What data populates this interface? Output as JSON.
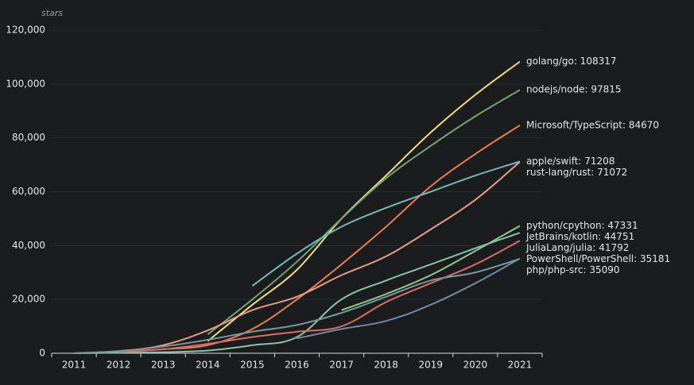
{
  "chart_data": {
    "type": "line",
    "y_axis_name": "stars",
    "categories": [
      "2011",
      "2012",
      "2013",
      "2014",
      "2015",
      "2016",
      "2017",
      "2018",
      "2019",
      "2020",
      "2021"
    ],
    "ylim": [
      0,
      120000
    ],
    "yticks": [
      0,
      {
        "value": 20000,
        "label": "20,000"
      },
      {
        "value": 40000,
        "label": "40,000"
      },
      {
        "value": 60000,
        "label": "60,000"
      },
      {
        "value": 80000,
        "label": "80,000"
      },
      {
        "value": 100000,
        "label": "100,000"
      },
      {
        "value": 120000,
        "label": "120,000"
      }
    ],
    "grid": true,
    "series": [
      {
        "label": "golang/go: 108317",
        "color": "#eedd78",
        "values": [
          null,
          null,
          null,
          4500,
          18000,
          31000,
          50000,
          66000,
          82000,
          96000,
          108317
        ]
      },
      {
        "label": "nodejs/node: 97815",
        "color": "#73a373",
        "values": [
          null,
          null,
          null,
          7000,
          20000,
          34000,
          50000,
          65000,
          77000,
          88000,
          97815
        ]
      },
      {
        "label": "Microsoft/TypeScript: 84670",
        "color": "#ea7e53",
        "values": [
          null,
          500,
          1500,
          3000,
          9000,
          20000,
          33000,
          47000,
          62000,
          74000,
          84670
        ]
      },
      {
        "label": "apple/swift: 71208",
        "color": "#73b9bc",
        "values": [
          null,
          null,
          null,
          null,
          25000,
          37000,
          47000,
          54000,
          60000,
          66000,
          71208
        ]
      },
      {
        "label": "rust-lang/rust: 71072",
        "color": "#e69d87",
        "values": [
          0,
          800,
          3000,
          8500,
          16000,
          21000,
          29000,
          36000,
          46000,
          57000,
          71072
        ]
      },
      {
        "label": "python/cpython: 47331",
        "color": "#91ca8c",
        "values": [
          null,
          null,
          null,
          null,
          null,
          null,
          16000,
          22000,
          29000,
          38000,
          47331
        ]
      },
      {
        "label": "JetBrains/kotlin: 44751",
        "color": "#8dc1a9",
        "values": [
          0,
          200,
          400,
          1000,
          3000,
          6000,
          20000,
          27000,
          33000,
          39000,
          44751
        ]
      },
      {
        "label": "JuliaLang/julia: 41792",
        "color": "#dd6b66",
        "values": [
          null,
          500,
          1500,
          3500,
          6000,
          8000,
          10000,
          19000,
          26000,
          33000,
          41792
        ]
      },
      {
        "label": "PowerShell/PowerShell: 35181",
        "color": "#7289ab",
        "values": [
          null,
          null,
          null,
          null,
          null,
          5500,
          9000,
          12000,
          18000,
          26000,
          35181
        ]
      },
      {
        "label": "php/php-src: 35090",
        "color": "#759aa0",
        "values": [
          0,
          800,
          2500,
          5000,
          8000,
          10500,
          15000,
          21000,
          27000,
          30000,
          35090
        ]
      }
    ]
  }
}
